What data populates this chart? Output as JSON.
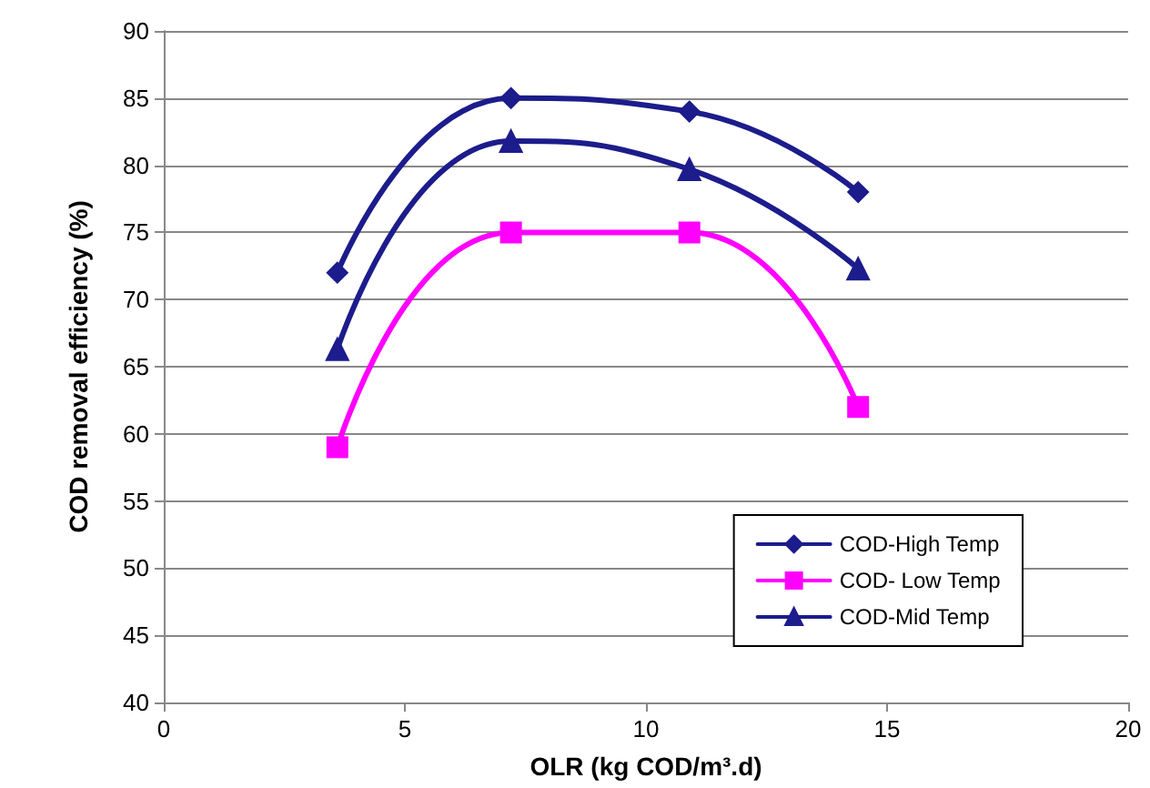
{
  "chart_data": {
    "type": "line",
    "xlabel": "OLR (kg COD/m³.d)",
    "ylabel": "COD removal efficiency (%)",
    "xlim": [
      0,
      20
    ],
    "xticks": [
      0,
      5,
      10,
      15,
      20
    ],
    "ylim": [
      40,
      90
    ],
    "yticks": [
      40,
      45,
      50,
      55,
      60,
      65,
      70,
      75,
      80,
      85,
      90
    ],
    "grid": "y",
    "legend": "bottom right",
    "series": [
      {
        "name": "COD-High Temp",
        "color": "#1c1c8c",
        "marker": "diamond",
        "x": [
          3.6,
          7.2,
          10.9,
          14.4
        ],
        "values": [
          72,
          85,
          84,
          78
        ]
      },
      {
        "name": "COD- Low Temp",
        "color": "#ff00ff",
        "marker": "square",
        "x": [
          3.6,
          7.2,
          10.9,
          14.4
        ],
        "values": [
          59,
          75,
          75,
          62
        ]
      },
      {
        "name": "COD-Mid Temp",
        "color": "#1c1c8c",
        "marker": "triangle",
        "x": [
          3.6,
          7.2,
          10.9,
          14.4
        ],
        "values": [
          66.3,
          81.8,
          79.7,
          72.3
        ]
      }
    ]
  }
}
